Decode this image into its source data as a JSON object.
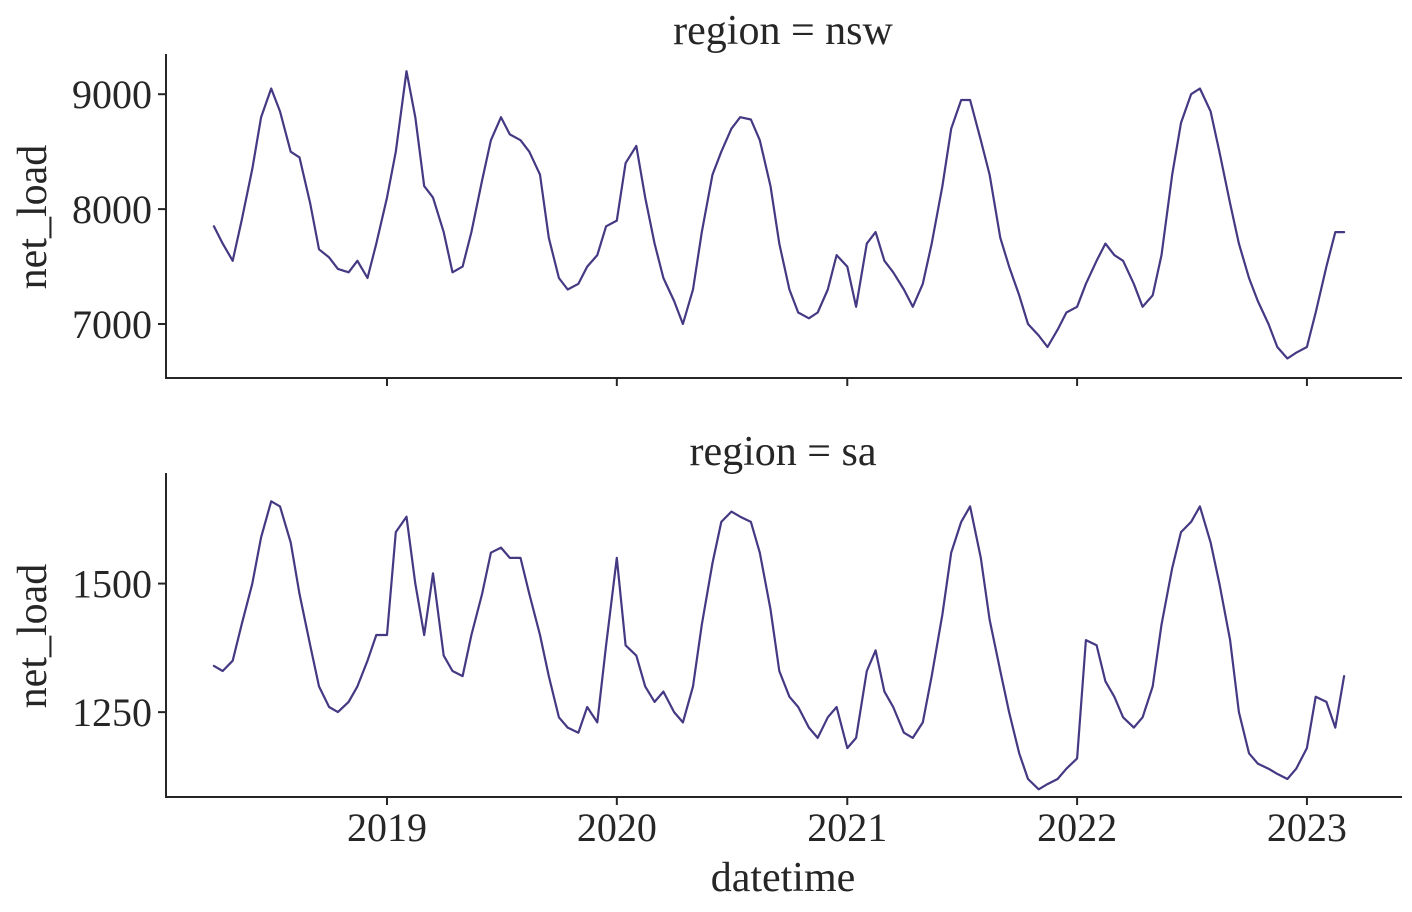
{
  "chart_data": [
    {
      "type": "line",
      "title": "region = nsw",
      "xlabel": "",
      "ylabel": "net_load",
      "xlim": [
        "2018-01-15",
        "2023-06-01"
      ],
      "ylim": [
        6530,
        9350
      ],
      "yticks": [
        7000,
        8000,
        9000
      ],
      "xticks": [],
      "color": "#443983",
      "x": [
        "2018-04-01",
        "2018-04-15",
        "2018-05-01",
        "2018-05-15",
        "2018-06-01",
        "2018-06-15",
        "2018-07-01",
        "2018-07-15",
        "2018-08-01",
        "2018-08-15",
        "2018-09-01",
        "2018-09-15",
        "2018-10-01",
        "2018-10-15",
        "2018-11-01",
        "2018-11-15",
        "2018-12-01",
        "2018-12-15",
        "2019-01-01",
        "2019-01-15",
        "2019-02-01",
        "2019-02-15",
        "2019-03-01",
        "2019-03-15",
        "2019-04-01",
        "2019-04-15",
        "2019-05-01",
        "2019-05-15",
        "2019-06-01",
        "2019-06-15",
        "2019-07-01",
        "2019-07-15",
        "2019-08-01",
        "2019-08-15",
        "2019-09-01",
        "2019-09-15",
        "2019-10-01",
        "2019-10-15",
        "2019-11-01",
        "2019-11-15",
        "2019-12-01",
        "2019-12-15",
        "2020-01-01",
        "2020-01-15",
        "2020-02-01",
        "2020-02-15",
        "2020-03-01",
        "2020-03-15",
        "2020-04-01",
        "2020-04-15",
        "2020-05-01",
        "2020-05-15",
        "2020-06-01",
        "2020-06-15",
        "2020-07-01",
        "2020-07-15",
        "2020-08-01",
        "2020-08-15",
        "2020-09-01",
        "2020-09-15",
        "2020-10-01",
        "2020-10-15",
        "2020-11-01",
        "2020-11-15",
        "2020-12-01",
        "2020-12-15",
        "2021-01-01",
        "2021-01-15",
        "2021-02-01",
        "2021-02-15",
        "2021-03-01",
        "2021-03-15",
        "2021-04-01",
        "2021-04-15",
        "2021-05-01",
        "2021-05-15",
        "2021-06-01",
        "2021-06-15",
        "2021-07-01",
        "2021-07-15",
        "2021-08-01",
        "2021-08-15",
        "2021-09-01",
        "2021-09-15",
        "2021-10-01",
        "2021-10-15",
        "2021-11-01",
        "2021-11-15",
        "2021-12-01",
        "2021-12-15",
        "2022-01-01",
        "2022-01-15",
        "2022-02-01",
        "2022-02-15",
        "2022-03-01",
        "2022-03-15",
        "2022-04-01",
        "2022-04-15",
        "2022-05-01",
        "2022-05-15",
        "2022-06-01",
        "2022-06-15",
        "2022-07-01",
        "2022-07-15",
        "2022-08-01",
        "2022-08-15",
        "2022-09-01",
        "2022-09-15",
        "2022-10-01",
        "2022-10-15",
        "2022-11-01",
        "2022-11-15",
        "2022-12-01",
        "2022-12-15",
        "2023-01-01",
        "2023-01-15",
        "2023-02-01",
        "2023-02-15",
        "2023-03-01"
      ],
      "values": [
        7850,
        7700,
        7550,
        7900,
        8350,
        8800,
        9050,
        8850,
        8500,
        8450,
        8050,
        7650,
        7580,
        7480,
        7450,
        7550,
        7400,
        7700,
        8100,
        8500,
        9200,
        8800,
        8200,
        8100,
        7800,
        7450,
        7500,
        7800,
        8250,
        8600,
        8800,
        8650,
        8600,
        8500,
        8300,
        7750,
        7400,
        7300,
        7350,
        7500,
        7600,
        7850,
        7900,
        8400,
        8550,
        8100,
        7700,
        7400,
        7200,
        7000,
        7300,
        7800,
        8300,
        8500,
        8700,
        8800,
        8780,
        8600,
        8200,
        7700,
        7300,
        7100,
        7050,
        7100,
        7300,
        7600,
        7500,
        7150,
        7700,
        7800,
        7550,
        7450,
        7300,
        7150,
        7350,
        7700,
        8200,
        8700,
        8950,
        8950,
        8600,
        8300,
        7750,
        7500,
        7250,
        7000,
        6900,
        6800,
        6950,
        7100,
        7150,
        7350,
        7550,
        7700,
        7600,
        7550,
        7350,
        7150,
        7250,
        7600,
        8300,
        8750,
        9000,
        9050,
        8850,
        8500,
        8050,
        7700,
        7400,
        7200,
        7000,
        6800,
        6700,
        6750,
        6800,
        7100,
        7500,
        7800,
        7800
      ]
    },
    {
      "type": "line",
      "title": "region = sa",
      "xlabel": "datetime",
      "ylabel": "net_load",
      "xlim": [
        "2018-01-15",
        "2023-06-01"
      ],
      "ylim": [
        1085,
        1715
      ],
      "yticks": [
        1250,
        1500
      ],
      "xticks": [
        "2019",
        "2020",
        "2021",
        "2022",
        "2023"
      ],
      "color": "#443983",
      "x": [
        "2018-04-01",
        "2018-04-15",
        "2018-05-01",
        "2018-05-15",
        "2018-06-01",
        "2018-06-15",
        "2018-07-01",
        "2018-07-15",
        "2018-08-01",
        "2018-08-15",
        "2018-09-01",
        "2018-09-15",
        "2018-10-01",
        "2018-10-15",
        "2018-11-01",
        "2018-11-15",
        "2018-12-01",
        "2018-12-15",
        "2019-01-01",
        "2019-01-15",
        "2019-02-01",
        "2019-02-15",
        "2019-03-01",
        "2019-03-15",
        "2019-04-01",
        "2019-04-15",
        "2019-05-01",
        "2019-05-15",
        "2019-06-01",
        "2019-06-15",
        "2019-07-01",
        "2019-07-15",
        "2019-08-01",
        "2019-08-15",
        "2019-09-01",
        "2019-09-15",
        "2019-10-01",
        "2019-10-15",
        "2019-11-01",
        "2019-11-15",
        "2019-12-01",
        "2019-12-15",
        "2020-01-01",
        "2020-01-15",
        "2020-02-01",
        "2020-02-15",
        "2020-03-01",
        "2020-03-15",
        "2020-04-01",
        "2020-04-15",
        "2020-05-01",
        "2020-05-15",
        "2020-06-01",
        "2020-06-15",
        "2020-07-01",
        "2020-07-15",
        "2020-08-01",
        "2020-08-15",
        "2020-09-01",
        "2020-09-15",
        "2020-10-01",
        "2020-10-15",
        "2020-11-01",
        "2020-11-15",
        "2020-12-01",
        "2020-12-15",
        "2021-01-01",
        "2021-01-15",
        "2021-02-01",
        "2021-02-15",
        "2021-03-01",
        "2021-03-15",
        "2021-04-01",
        "2021-04-15",
        "2021-05-01",
        "2021-05-15",
        "2021-06-01",
        "2021-06-15",
        "2021-07-01",
        "2021-07-15",
        "2021-08-01",
        "2021-08-15",
        "2021-09-01",
        "2021-09-15",
        "2021-10-01",
        "2021-10-15",
        "2021-11-01",
        "2021-11-15",
        "2021-12-01",
        "2021-12-15",
        "2022-01-01",
        "2022-01-15",
        "2022-02-01",
        "2022-02-15",
        "2022-03-01",
        "2022-03-15",
        "2022-04-01",
        "2022-04-15",
        "2022-05-01",
        "2022-05-15",
        "2022-06-01",
        "2022-06-15",
        "2022-07-01",
        "2022-07-15",
        "2022-08-01",
        "2022-08-15",
        "2022-09-01",
        "2022-09-15",
        "2022-10-01",
        "2022-10-15",
        "2022-11-01",
        "2022-11-15",
        "2022-12-01",
        "2022-12-15",
        "2023-01-01",
        "2023-01-15",
        "2023-02-01",
        "2023-02-15",
        "2023-03-01"
      ],
      "values": [
        1340,
        1330,
        1350,
        1420,
        1500,
        1590,
        1660,
        1650,
        1580,
        1480,
        1380,
        1300,
        1260,
        1250,
        1270,
        1300,
        1350,
        1400,
        1400,
        1600,
        1630,
        1500,
        1400,
        1520,
        1360,
        1330,
        1320,
        1400,
        1480,
        1560,
        1570,
        1550,
        1550,
        1480,
        1400,
        1320,
        1240,
        1220,
        1210,
        1260,
        1230,
        1380,
        1550,
        1380,
        1360,
        1300,
        1270,
        1290,
        1250,
        1230,
        1300,
        1420,
        1540,
        1620,
        1640,
        1630,
        1620,
        1560,
        1450,
        1330,
        1280,
        1260,
        1220,
        1200,
        1240,
        1260,
        1180,
        1200,
        1330,
        1370,
        1290,
        1260,
        1210,
        1200,
        1230,
        1320,
        1440,
        1560,
        1620,
        1650,
        1550,
        1430,
        1330,
        1250,
        1170,
        1120,
        1100,
        1110,
        1120,
        1140,
        1160,
        1390,
        1380,
        1310,
        1280,
        1240,
        1220,
        1240,
        1300,
        1420,
        1530,
        1600,
        1620,
        1650,
        1580,
        1500,
        1390,
        1250,
        1170,
        1150,
        1140,
        1130,
        1120,
        1140,
        1180,
        1280,
        1270,
        1220,
        1320
      ]
    }
  ]
}
